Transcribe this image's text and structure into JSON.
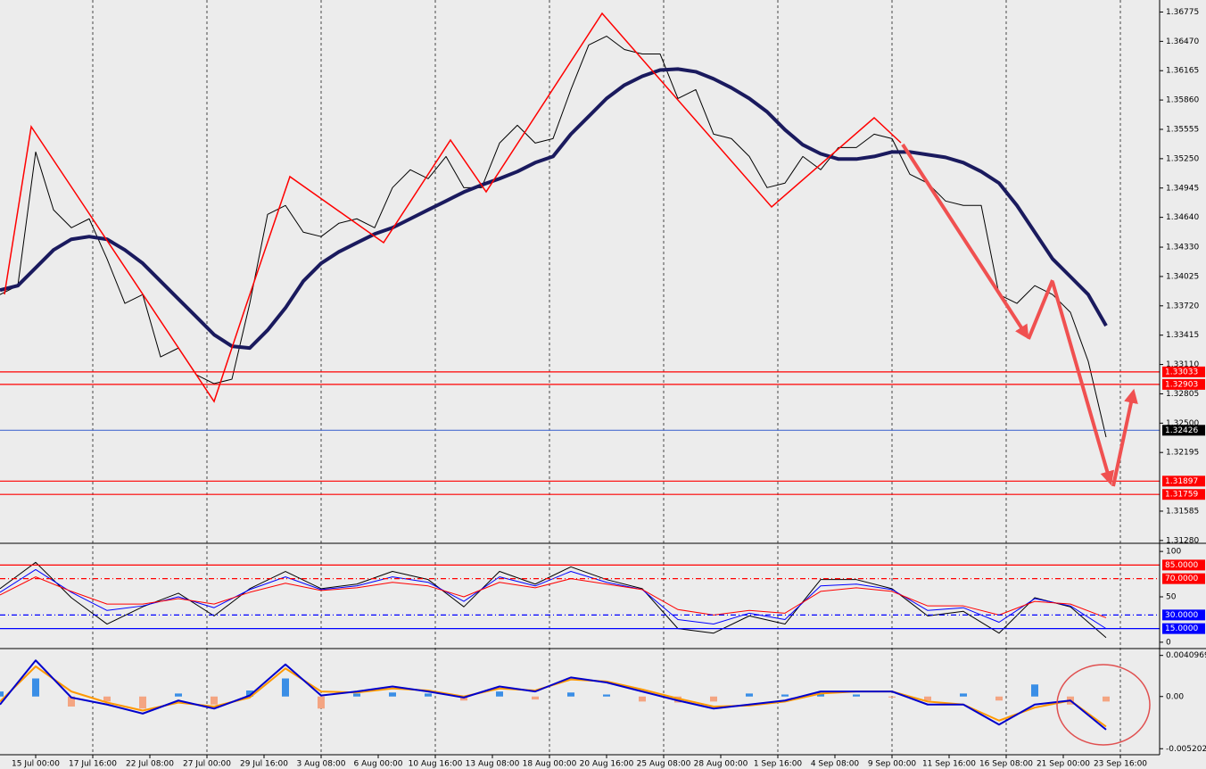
{
  "chart_data": [
    {
      "type": "line",
      "xlim": [
        0,
        325
      ],
      "xticks": [
        {
          "value": 10,
          "label": "15 Jul 00:00"
        },
        {
          "value": 26,
          "label": "17 Jul 16:00"
        },
        {
          "value": 42,
          "label": "22 Jul 08:00"
        },
        {
          "value": 58,
          "label": "27 Jul 00:00"
        },
        {
          "value": 74,
          "label": "29 Jul 16:00"
        },
        {
          "value": 90,
          "label": "3 Aug 08:00"
        },
        {
          "value": 106,
          "label": "6 Aug 00:00"
        },
        {
          "value": 122,
          "label": "10 Aug 16:00"
        },
        {
          "value": 138,
          "label": "13 Aug 08:00"
        },
        {
          "value": 154,
          "label": "18 Aug 00:00"
        },
        {
          "value": 170,
          "label": "20 Aug 16:00"
        },
        {
          "value": 186,
          "label": "25 Aug 08:00"
        },
        {
          "value": 202,
          "label": "28 Aug 00:00"
        },
        {
          "value": 218,
          "label": "1 Sep 16:00"
        },
        {
          "value": 234,
          "label": "4 Sep 08:00"
        },
        {
          "value": 250,
          "label": "9 Sep 00:00"
        },
        {
          "value": 266,
          "label": "11 Sep 16:00"
        },
        {
          "value": 282,
          "label": "16 Sep 08:00"
        },
        {
          "value": 298,
          "label": "21 Sep 00:00"
        },
        {
          "value": 314,
          "label": "23 Sep 16:00"
        }
      ],
      "grid": true,
      "ylim": [
        1.3126,
        1.369
      ],
      "yticks": [
        1.36775,
        {
          "value": 1.3647,
          "label": "1.36470"
        },
        1.36165,
        {
          "value": 1.3586,
          "label": "1.35860"
        },
        1.35555,
        {
          "value": 1.3525,
          "label": "1.35250"
        },
        1.34945,
        {
          "value": 1.3464,
          "label": "1.34640"
        },
        {
          "value": 1.3433,
          "label": "1.34330"
        },
        1.34025,
        {
          "value": 1.3372,
          "label": "1.33720"
        },
        1.33415,
        {
          "value": 1.3311,
          "label": "1.33110"
        },
        1.32805,
        {
          "value": 1.325,
          "label": "1.32500"
        },
        1.32195,
        1.31585,
        {
          "value": 1.3128,
          "label": "1.31280"
        }
      ],
      "x": [
        0,
        5,
        10,
        15,
        20,
        25,
        30,
        35,
        40,
        45,
        50,
        55,
        60,
        65,
        70,
        75,
        80,
        85,
        90,
        95,
        100,
        105,
        110,
        115,
        120,
        125,
        130,
        135,
        140,
        145,
        150,
        155,
        160,
        165,
        170,
        175,
        180,
        185,
        190,
        195,
        200,
        205,
        210,
        215,
        220,
        225,
        230,
        235,
        240,
        245,
        250,
        255,
        260,
        265,
        270,
        275,
        280,
        285,
        290,
        295,
        300,
        305,
        310
      ],
      "series": [
        {
          "color": "#000000",
          "line_width": 1,
          "values": [
            1.33837,
            1.3393,
            1.3532,
            1.34718,
            1.34532,
            1.34625,
            1.34208,
            1.33745,
            1.33837,
            1.33189,
            1.33281,
            1.33003,
            1.32911,
            1.32957,
            1.33745,
            1.34671,
            1.34764,
            1.34486,
            1.3444,
            1.34579,
            1.34625,
            1.34532,
            1.34949,
            1.35135,
            1.35042,
            1.35273,
            1.34949,
            1.34949,
            1.35412,
            1.35598,
            1.35412,
            1.35459,
            1.35968,
            1.36432,
            1.36524,
            1.36385,
            1.36339,
            1.36339,
            1.35876,
            1.35968,
            1.35505,
            1.35459,
            1.35273,
            1.34949,
            1.34996,
            1.35273,
            1.35135,
            1.35366,
            1.35366,
            1.35505,
            1.35459,
            1.35088,
            1.34996,
            1.3481,
            1.34764,
            1.34764,
            1.33837,
            1.33745,
            1.3393,
            1.33837,
            1.33652,
            1.33142,
            1.32355
          ]
        },
        {
          "color": "#1a1a5e",
          "line_width": 4,
          "values": [
            1.33884,
            1.3393,
            1.34115,
            1.34301,
            1.34412,
            1.3444,
            1.34412,
            1.34301,
            1.34162,
            1.33976,
            1.33791,
            1.33606,
            1.3342,
            1.333,
            1.33281,
            1.33467,
            1.33698,
            1.33976,
            1.34162,
            1.34282,
            1.34375,
            1.34467,
            1.34532,
            1.34625,
            1.34718,
            1.3481,
            1.34903,
            1.34977,
            1.35042,
            1.35116,
            1.35209,
            1.35273,
            1.35505,
            1.3569,
            1.35876,
            1.36015,
            1.36107,
            1.36172,
            1.36182,
            1.36154,
            1.3608,
            1.35987,
            1.35876,
            1.35737,
            1.35551,
            1.35394,
            1.35301,
            1.35246,
            1.35246,
            1.35273,
            1.3532,
            1.3532,
            1.35292,
            1.35264,
            1.35209,
            1.35116,
            1.34996,
            1.34764,
            1.34486,
            1.34208,
            1.34023,
            1.33837,
            1.33513
          ]
        }
      ],
      "levels": [
        {
          "value": 1.33033,
          "color": "#ff0000",
          "label_color": "#ff0000"
        },
        {
          "value": 1.32903,
          "color": "#ff0000",
          "label_color": "#ff0000"
        },
        {
          "value": 1.32426,
          "color": "#4a6fd0",
          "label_color": "#000000"
        },
        {
          "value": 1.31897,
          "color": "#ff0000",
          "label_color": "#ff0000"
        },
        {
          "value": 1.31759,
          "color": "#ff0000",
          "label_color": "#ff0000"
        }
      ]
    },
    {
      "type": "line",
      "ylim": [
        -6,
        107
      ],
      "yticks": [
        100,
        50,
        0
      ],
      "x": [
        0,
        10,
        20,
        30,
        40,
        50,
        60,
        70,
        80,
        90,
        100,
        110,
        120,
        130,
        140,
        150,
        160,
        170,
        180,
        190,
        200,
        210,
        220,
        230,
        240,
        250,
        260,
        270,
        280,
        290,
        300,
        310
      ],
      "series": [
        {
          "color": "#000000",
          "line_width": 1,
          "values": [
            59,
            88,
            49,
            20,
            39,
            54,
            29,
            59,
            78,
            59,
            64,
            78,
            69,
            39,
            78,
            64,
            83,
            69,
            59,
            15,
            10,
            29,
            20,
            69,
            69,
            59,
            29,
            34,
            10,
            49,
            39,
            5
          ]
        },
        {
          "color": "#0000ff",
          "line_width": 1,
          "values": [
            55,
            80,
            55,
            35,
            40,
            50,
            38,
            58,
            72,
            58,
            62,
            72,
            66,
            45,
            72,
            62,
            78,
            66,
            58,
            25,
            20,
            32,
            25,
            62,
            64,
            58,
            35,
            38,
            22,
            48,
            40,
            15
          ]
        },
        {
          "color": "#ff0000",
          "line_width": 1,
          "values": [
            52,
            72,
            56,
            42,
            42,
            48,
            42,
            55,
            65,
            57,
            60,
            66,
            62,
            50,
            66,
            60,
            70,
            64,
            58,
            36,
            30,
            35,
            32,
            56,
            60,
            56,
            40,
            40,
            30,
            45,
            42,
            27
          ]
        }
      ],
      "levels": [
        {
          "value": 85,
          "label": "85.0000",
          "color": "#ff0000",
          "label_color": "#ff0000",
          "style": "solid"
        },
        {
          "value": 70,
          "label": "70.0000",
          "color": "#ff0000",
          "label_color": "#ff0000",
          "style": "dashdot"
        },
        {
          "value": 30,
          "label": "30.0000",
          "color": "#0000ff",
          "label_color": "#0000ff",
          "style": "dashdot"
        },
        {
          "value": 15,
          "label": "15.0000",
          "color": "#0000ff",
          "label_color": "#0000ff",
          "style": "solid"
        }
      ]
    },
    {
      "type": "line",
      "ylim": [
        -0.0058,
        0.0046
      ],
      "yticks": [
        0.0040969,
        {
          "value": 0,
          "label": "0.00"
        },
        -0.005202
      ],
      "x": [
        0,
        10,
        20,
        30,
        40,
        50,
        60,
        70,
        80,
        90,
        100,
        110,
        120,
        130,
        140,
        150,
        160,
        170,
        180,
        190,
        200,
        210,
        220,
        230,
        240,
        250,
        260,
        270,
        280,
        290,
        300,
        310
      ],
      "bars": {
        "colors": [
          "#3a8ee6",
          "#f4a582"
        ],
        "values": [
          0.0005,
          0.0018,
          -0.001,
          -0.0005,
          -0.0012,
          0.0003,
          -0.0008,
          0.0006,
          0.0018,
          -0.0012,
          0.0003,
          0.0004,
          0.0003,
          -0.0004,
          0.0005,
          -0.0003,
          0.0004,
          0.0002,
          -0.0005,
          -0.0006,
          -0.0005,
          0.0003,
          0.0002,
          0.0004,
          0.0002,
          -0.0001,
          -0.0004,
          0.0003,
          -0.0004,
          0.0012,
          -0.0008,
          -0.0005
        ]
      },
      "series": [
        {
          "color": "#ff9900",
          "line_width": 2,
          "values": [
            -0.0005,
            0.003,
            0.0005,
            -0.0006,
            -0.0014,
            -0.0006,
            -0.001,
            -0.0001,
            0.0028,
            0.0005,
            0.0004,
            0.0008,
            0.0006,
            0,
            0.0008,
            0.0006,
            0.0017,
            0.0015,
            0.0007,
            -0.0002,
            -0.001,
            -0.0009,
            -0.0005,
            0.0003,
            0.0005,
            0.0005,
            -0.0005,
            -0.0008,
            -0.0024,
            -0.0011,
            -0.0004,
            -0.003
          ]
        },
        {
          "color": "#0000cc",
          "line_width": 2,
          "values": [
            -0.0008,
            0.0036,
            -0.0001,
            -0.0008,
            -0.0017,
            -0.0004,
            -0.0012,
            0.0001,
            0.0032,
            0.0001,
            0.0005,
            0.001,
            0.0005,
            -0.0001,
            0.001,
            0.0005,
            0.0019,
            0.0014,
            0.0005,
            -0.0004,
            -0.0012,
            -0.0008,
            -0.0004,
            0.0005,
            0.0005,
            0.0005,
            -0.0008,
            -0.0008,
            -0.0028,
            -0.0008,
            -0.0004,
            -0.0033
          ]
        }
      ]
    }
  ]
}
